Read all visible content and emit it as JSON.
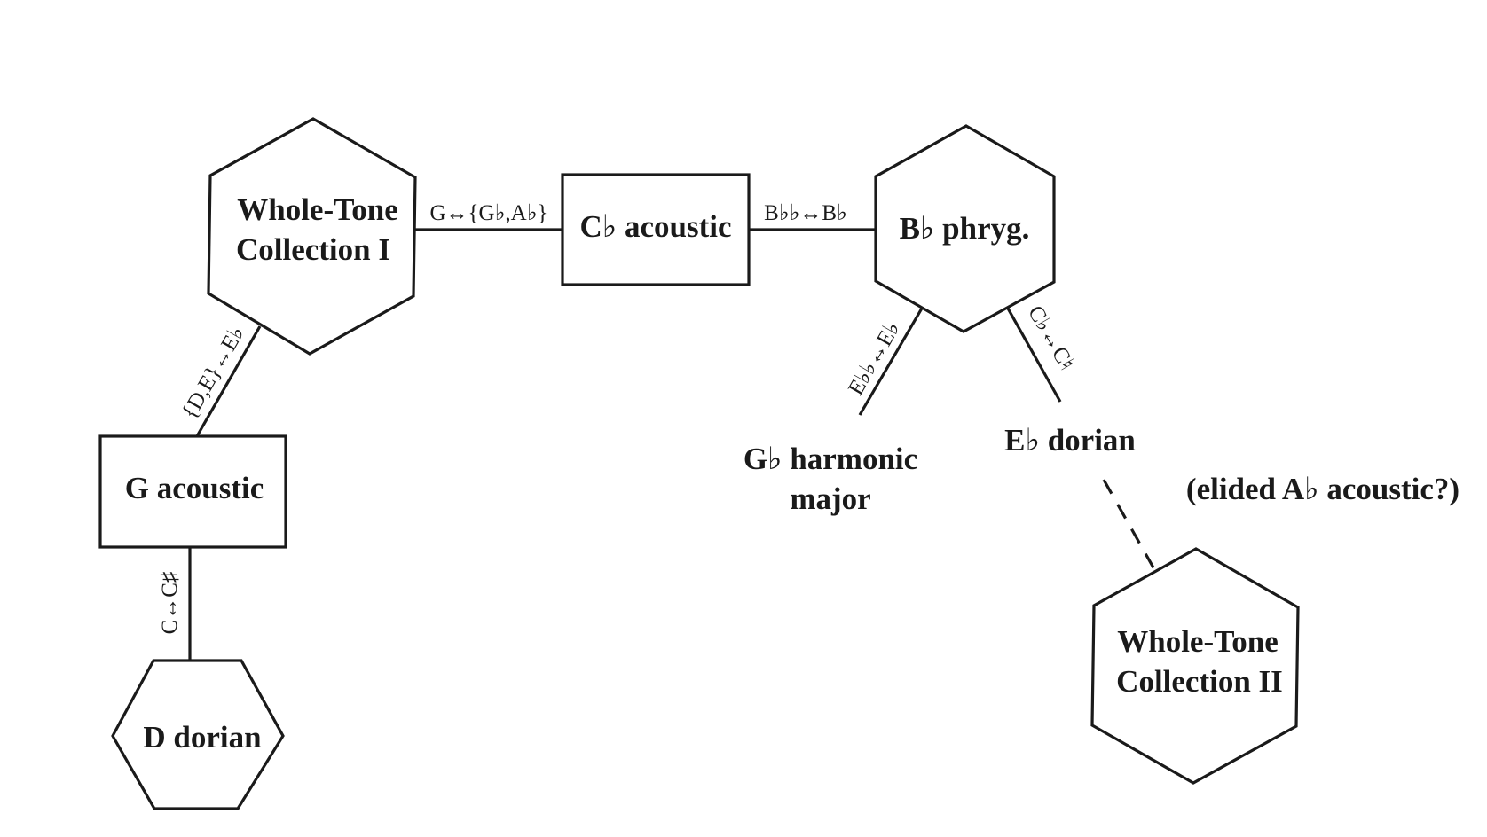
{
  "nodes": {
    "wt1": {
      "line1": "Whole-Tone",
      "line2": "Collection I"
    },
    "cb_acoustic": {
      "label": "C♭ acoustic"
    },
    "bb_phryg": {
      "label": "B♭ phryg."
    },
    "g_acoustic": {
      "label": "G acoustic"
    },
    "d_dorian": {
      "label": "D dorian"
    },
    "gb_harmonic_major": {
      "line1": "G♭ harmonic",
      "line2": "major"
    },
    "eb_dorian": {
      "label": "E♭ dorian"
    },
    "elided_ab_acoustic": {
      "label": "(elided A♭ acoustic?)"
    },
    "wt2": {
      "line1": "Whole-Tone",
      "line2": "Collection II"
    }
  },
  "edges": {
    "wt1_cb": {
      "label": "G↔{G♭,A♭}"
    },
    "cb_bb": {
      "label": "B♭♭↔B♭"
    },
    "wt1_g": {
      "label": "{D,E}↔E♭"
    },
    "g_d": {
      "label": "C↔C♯"
    },
    "bb_gb": {
      "label": "E♭♭↔E♭"
    },
    "bb_eb": {
      "label": "C♭↔C♮"
    }
  }
}
